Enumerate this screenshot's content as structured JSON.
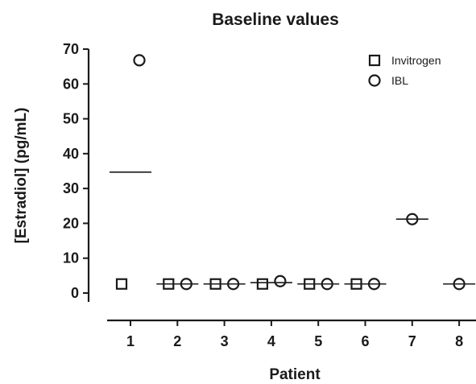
{
  "chart_data": {
    "type": "scatter",
    "title": "Baseline values",
    "xlabel": "Patient",
    "ylabel": "[Estradiol] (pg/mL)",
    "categories": [
      "1",
      "2",
      "3",
      "4",
      "5",
      "6",
      "7",
      "8"
    ],
    "ylim": [
      0,
      70
    ],
    "yticks": [
      0,
      10,
      20,
      30,
      40,
      50,
      60,
      70
    ],
    "grid": false,
    "legend_position": "top-right",
    "series": [
      {
        "name": "Invitrogen",
        "marker": "square",
        "values": [
          2.6,
          2.6,
          2.6,
          2.6,
          2.6,
          2.6,
          null,
          null
        ]
      },
      {
        "name": "IBL",
        "marker": "circle",
        "values": [
          66.8,
          2.6,
          2.6,
          3.4,
          2.6,
          2.6,
          21.2,
          2.6
        ]
      }
    ]
  }
}
